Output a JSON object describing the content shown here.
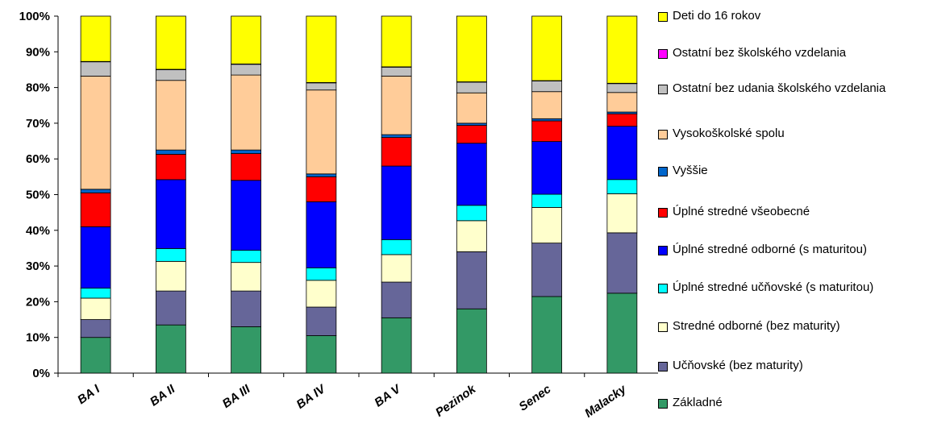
{
  "chart_data": {
    "type": "bar",
    "stacked": true,
    "normalized": true,
    "categories": [
      "BA I",
      "BA II",
      "BA III",
      "BA IV",
      "BA V",
      "Pezinok",
      "Senec",
      "Malacky"
    ],
    "y_ticks": [
      "0%",
      "10%",
      "20%",
      "30%",
      "40%",
      "50%",
      "60%",
      "70%",
      "80%",
      "90%",
      "100%"
    ],
    "ylim": [
      0,
      100
    ],
    "legend_position": "right",
    "series": [
      {
        "name": "Základné",
        "color": "#339966",
        "values": [
          10,
          13.5,
          13,
          10.5,
          15.5,
          18,
          21.5,
          22.5
        ]
      },
      {
        "name": "Učňovské (bez maturity)",
        "color": "#666699",
        "values": [
          5,
          9.5,
          10,
          8,
          10,
          16,
          15,
          17
        ]
      },
      {
        "name": "Stredné odborné (bez maturity)",
        "color": "#ffffcc",
        "values": [
          6,
          8.3,
          8,
          7.5,
          7.7,
          8.7,
          10,
          11
        ]
      },
      {
        "name": "Úplné stredné učňovské (s maturitou)",
        "color": "#00ffff",
        "values": [
          2.8,
          3.6,
          3.4,
          3.5,
          4.2,
          4.3,
          3.7,
          4
        ]
      },
      {
        "name": "Úplné stredné odborné (s maturitou)",
        "color": "#0000ff",
        "values": [
          17.2,
          19.3,
          19.6,
          18.5,
          20.6,
          17.4,
          14.8,
          15
        ]
      },
      {
        "name": "Úplné stredné všeobecné",
        "color": "#ff0000",
        "values": [
          9.5,
          7.1,
          7.5,
          7,
          8,
          5,
          5.8,
          3.5
        ]
      },
      {
        "name": "Vyššie",
        "color": "#0066cc",
        "values": [
          1,
          1.2,
          1,
          0.8,
          0.8,
          0.6,
          0.6,
          0.5
        ]
      },
      {
        "name": "Vysokoškolské spolu",
        "color": "#ffcc99",
        "values": [
          31.7,
          19.5,
          21,
          23.5,
          16.4,
          8.5,
          7.6,
          5.5
        ]
      },
      {
        "name": "Ostatní bez udania školského vzdelania",
        "color": "#c0c0c0",
        "values": [
          4,
          3,
          3,
          2,
          2.5,
          3,
          3,
          2.5
        ]
      },
      {
        "name": "Ostatní bez školského vzdelania",
        "color": "#ff00ff",
        "values": [
          0.1,
          0.1,
          0.1,
          0.1,
          0.1,
          0.1,
          0.1,
          0.1
        ]
      },
      {
        "name": "Deti do 16 rokov",
        "color": "#ffff00",
        "values": [
          12.7,
          14.9,
          13.4,
          18.6,
          14.2,
          18.4,
          18.1,
          18.9
        ]
      }
    ]
  },
  "legend": [
    {
      "label": "Deti do 16 rokov",
      "color": "#ffff00"
    },
    {
      "label": "Ostatní bez školského vzdelania",
      "color": "#ff00ff"
    },
    {
      "label": "Ostatní bez udania školského vzdelania",
      "color": "#c0c0c0"
    },
    {
      "label": "Vysokoškolské spolu",
      "color": "#ffcc99"
    },
    {
      "label": "Vyššie",
      "color": "#0066cc"
    },
    {
      "label": "Úplné stredné všeobecné",
      "color": "#ff0000"
    },
    {
      "label": "Úplné stredné odborné (s maturitou)",
      "color": "#0000ff"
    },
    {
      "label": "Úplné stredné učňovské (s maturitou)",
      "color": "#00ffff"
    },
    {
      "label": "Stredné odborné (bez maturity)",
      "color": "#ffffcc"
    },
    {
      "label": "Učňovské (bez maturity)",
      "color": "#666699"
    },
    {
      "label": "Základné",
      "color": "#339966"
    }
  ]
}
